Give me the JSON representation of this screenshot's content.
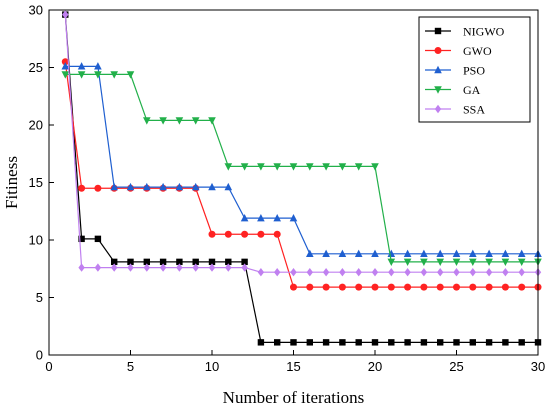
{
  "chart_data": {
    "type": "line",
    "title": "",
    "xlabel": "Number of iterations",
    "ylabel": "Fitiness",
    "xlim": [
      0,
      30
    ],
    "ylim": [
      0,
      30
    ],
    "xticks": [
      0,
      5,
      10,
      15,
      20,
      25,
      30
    ],
    "yticks": [
      0,
      5,
      10,
      15,
      20,
      25,
      30
    ],
    "grid": false,
    "legend_position": "top-right",
    "x": [
      1,
      2,
      3,
      4,
      5,
      6,
      7,
      8,
      9,
      10,
      11,
      12,
      13,
      14,
      15,
      16,
      17,
      18,
      19,
      20,
      21,
      22,
      23,
      24,
      25,
      26,
      27,
      28,
      29,
      30
    ],
    "series": [
      {
        "name": "NIGWO",
        "color": "#000000",
        "marker": "square",
        "values": [
          29.6,
          10.1,
          10.1,
          8.1,
          8.1,
          8.1,
          8.1,
          8.1,
          8.1,
          8.1,
          8.1,
          8.1,
          1.1,
          1.1,
          1.1,
          1.1,
          1.1,
          1.1,
          1.1,
          1.1,
          1.1,
          1.1,
          1.1,
          1.1,
          1.1,
          1.1,
          1.1,
          1.1,
          1.1,
          1.1
        ]
      },
      {
        "name": "GWO",
        "color": "#ff2222",
        "marker": "circle",
        "values": [
          25.5,
          14.5,
          14.5,
          14.5,
          14.5,
          14.5,
          14.5,
          14.5,
          14.5,
          10.5,
          10.5,
          10.5,
          10.5,
          10.5,
          5.9,
          5.9,
          5.9,
          5.9,
          5.9,
          5.9,
          5.9,
          5.9,
          5.9,
          5.9,
          5.9,
          5.9,
          5.9,
          5.9,
          5.9,
          5.9
        ]
      },
      {
        "name": "PSO",
        "color": "#1f5fd0",
        "marker": "triangle-up",
        "values": [
          25.1,
          25.1,
          25.1,
          14.6,
          14.6,
          14.6,
          14.6,
          14.6,
          14.6,
          14.6,
          14.6,
          11.9,
          11.9,
          11.9,
          11.9,
          8.8,
          8.8,
          8.8,
          8.8,
          8.8,
          8.8,
          8.8,
          8.8,
          8.8,
          8.8,
          8.8,
          8.8,
          8.8,
          8.8,
          8.8
        ]
      },
      {
        "name": "GA",
        "color": "#22b04a",
        "marker": "triangle-down",
        "values": [
          24.4,
          24.4,
          24.4,
          24.4,
          24.4,
          20.4,
          20.4,
          20.4,
          20.4,
          20.4,
          16.4,
          16.4,
          16.4,
          16.4,
          16.4,
          16.4,
          16.4,
          16.4,
          16.4,
          16.4,
          8.1,
          8.1,
          8.1,
          8.1,
          8.1,
          8.1,
          8.1,
          8.1,
          8.1,
          8.1
        ]
      },
      {
        "name": "SSA",
        "color": "#c080f0",
        "marker": "diamond",
        "values": [
          29.6,
          7.6,
          7.6,
          7.6,
          7.6,
          7.6,
          7.6,
          7.6,
          7.6,
          7.6,
          7.6,
          7.6,
          7.2,
          7.2,
          7.2,
          7.2,
          7.2,
          7.2,
          7.2,
          7.2,
          7.2,
          7.2,
          7.2,
          7.2,
          7.2,
          7.2,
          7.2,
          7.2,
          7.2,
          7.2
        ]
      }
    ]
  }
}
